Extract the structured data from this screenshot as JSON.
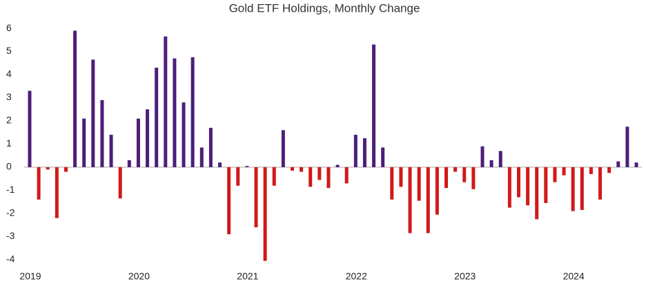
{
  "chart_data": {
    "type": "bar",
    "title": "Gold ETF Holdings, Monthly Change",
    "categories": [
      "2019",
      null,
      null,
      null,
      null,
      null,
      null,
      null,
      null,
      null,
      null,
      null,
      "2020",
      null,
      null,
      null,
      null,
      null,
      null,
      null,
      null,
      null,
      null,
      null,
      "2021",
      null,
      null,
      null,
      null,
      null,
      null,
      null,
      null,
      null,
      null,
      null,
      "2022",
      null,
      null,
      null,
      null,
      null,
      null,
      null,
      null,
      null,
      null,
      null,
      "2023",
      null,
      null,
      null,
      null,
      null,
      null,
      null,
      null,
      null,
      null,
      null,
      "2024",
      null,
      null,
      null,
      null,
      null,
      null,
      null
    ],
    "values": [
      3.3,
      -1.4,
      -0.1,
      -2.2,
      -0.2,
      5.9,
      2.1,
      4.65,
      2.9,
      1.4,
      -1.35,
      0.3,
      2.1,
      2.5,
      4.3,
      5.65,
      4.7,
      2.8,
      4.75,
      0.85,
      1.7,
      0.2,
      -2.9,
      -0.8,
      0.05,
      -2.6,
      -4.05,
      -0.8,
      1.6,
      -0.15,
      -0.2,
      -0.85,
      -0.55,
      -0.9,
      0.1,
      -0.7,
      1.4,
      1.25,
      5.3,
      0.85,
      -1.4,
      -0.85,
      -2.85,
      -1.45,
      -2.85,
      -2.05,
      -0.9,
      -0.2,
      -0.65,
      -0.95,
      0.9,
      0.3,
      0.7,
      -1.75,
      -1.3,
      -1.65,
      -2.25,
      -1.55,
      -0.65,
      -0.35,
      -1.9,
      -1.85,
      -0.3,
      -1.4,
      -0.25,
      0.25,
      1.75,
      0.2
    ],
    "positive_color": "#4b1f7a",
    "negative_color": "#d01a1a",
    "ylim": [
      -4.3,
      6.3
    ],
    "yticks": [
      -4,
      -3,
      -2,
      -1,
      0,
      1,
      2,
      3,
      4,
      5,
      6
    ],
    "grid": false
  }
}
